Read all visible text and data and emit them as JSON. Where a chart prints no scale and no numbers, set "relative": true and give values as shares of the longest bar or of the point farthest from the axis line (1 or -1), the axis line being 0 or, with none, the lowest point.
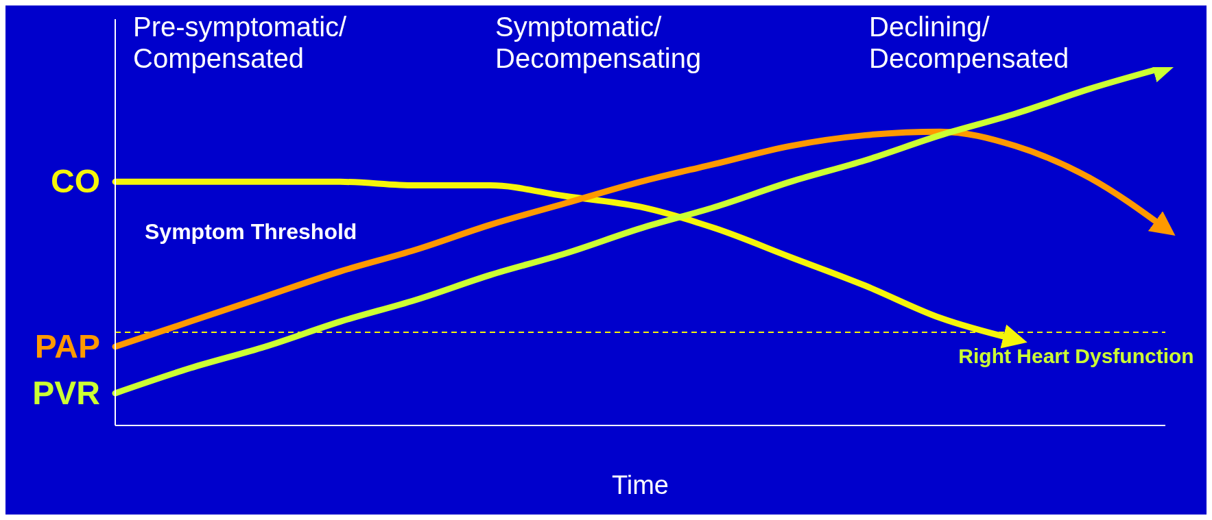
{
  "chart_data": {
    "type": "line",
    "relative": true,
    "xlabel": "Time",
    "categories": [
      null,
      null,
      null,
      null,
      null,
      null,
      null,
      null,
      null,
      null,
      null,
      null,
      null,
      null,
      null
    ],
    "series": [
      {
        "name": "CO",
        "color": "#f5f50a",
        "values": [
          0.68,
          0.68,
          0.68,
          0.68,
          0.67,
          0.67,
          0.64,
          0.61,
          0.55,
          0.47,
          0.39,
          0.3,
          0.24,
          null,
          null
        ]
      },
      {
        "name": "PAP",
        "color": "#ff9900",
        "values": [
          0.22,
          0.29,
          0.36,
          0.43,
          0.49,
          0.56,
          0.62,
          0.68,
          0.73,
          0.78,
          0.81,
          0.82,
          0.78,
          0.69,
          0.55
        ]
      },
      {
        "name": "PVR",
        "color": "#ccff33",
        "values": [
          0.09,
          0.16,
          0.22,
          0.29,
          0.35,
          0.42,
          0.48,
          0.55,
          0.61,
          0.68,
          0.74,
          0.81,
          0.87,
          0.94,
          1.0
        ]
      }
    ],
    "ref_lines": [
      {
        "axis": "y",
        "value": 0.26,
        "label": "Right Heart Dysfunction",
        "color": "#f5f50a",
        "line_style": "dashed"
      }
    ],
    "annotations": [
      "Pre-symptomatic/ Compensated",
      "Symptomatic/ Decompensating",
      "Declining/ Decompensated",
      "Symptom Threshold"
    ],
    "marker": "none",
    "line_style": "solid",
    "grid": false,
    "legend": false
  }
}
